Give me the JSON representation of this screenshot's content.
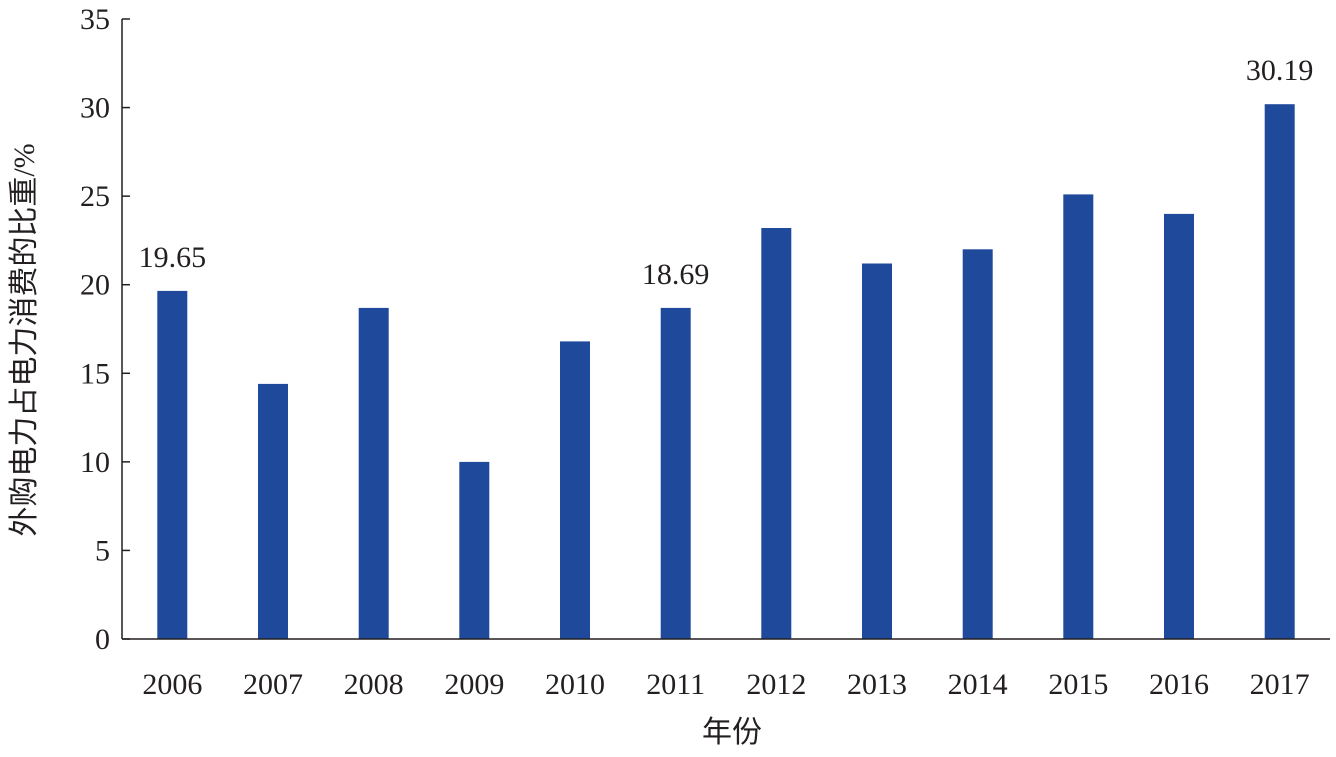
{
  "chart_data": {
    "type": "bar",
    "title": "",
    "xlabel": "年份",
    "ylabel": "外购电力占电力消费的比重/%",
    "categories": [
      "2006",
      "2007",
      "2008",
      "2009",
      "2010",
      "2011",
      "2012",
      "2013",
      "2014",
      "2015",
      "2016",
      "2017"
    ],
    "values": [
      19.65,
      14.4,
      18.69,
      10.0,
      16.8,
      18.69,
      23.2,
      21.2,
      22.0,
      25.1,
      24.0,
      30.19
    ],
    "data_labels": [
      {
        "category": "2006",
        "text": "19.65"
      },
      {
        "category": "2011",
        "text": "18.69"
      },
      {
        "category": "2017",
        "text": "30.19"
      }
    ],
    "ylim": [
      0,
      35
    ],
    "yticks": [
      "0",
      "5",
      "10",
      "15",
      "20",
      "25",
      "30",
      "35"
    ],
    "grid": false,
    "bar_color": "#1f4a9c",
    "axis_color": "#231f20"
  }
}
